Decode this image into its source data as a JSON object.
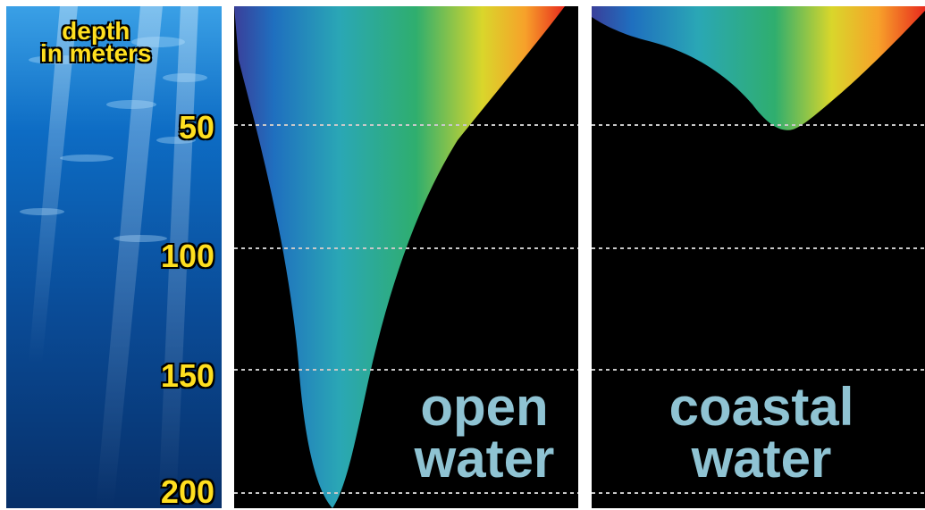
{
  "depth_axis": {
    "title_line1": "depth",
    "title_line2": "in meters",
    "ticks": [
      "50",
      "100",
      "150",
      "200"
    ]
  },
  "panels": [
    {
      "label_line1": "open",
      "label_line2": "water"
    },
    {
      "label_line1": "coastal",
      "label_line2": "water"
    }
  ],
  "colors": {
    "spectrum": [
      "#3a3f9a",
      "#1f6fbf",
      "#2aa7b5",
      "#2fae6e",
      "#d9d62b",
      "#f7a12a",
      "#e82a1d"
    ],
    "label_yellow": "#ffdf1f",
    "water_label": "#8fc3d3",
    "water_photo": "#0a3d7a"
  }
}
